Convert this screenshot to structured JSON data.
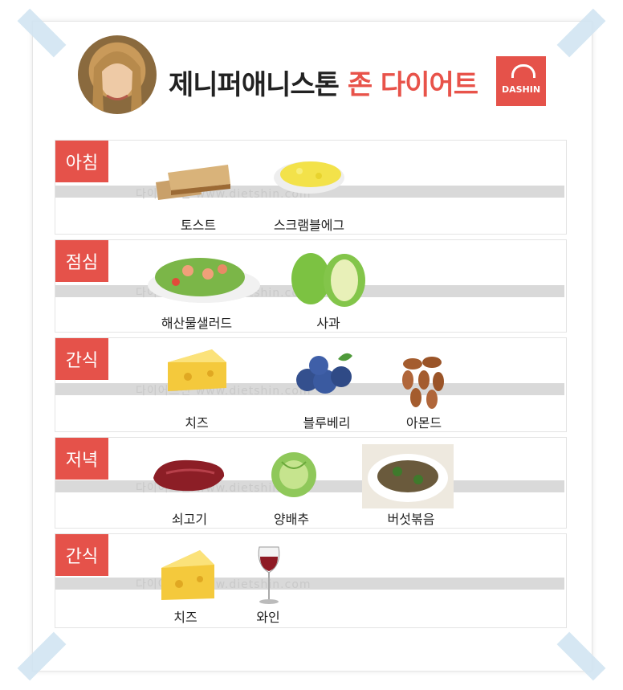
{
  "title": {
    "name": "제니퍼애니스톤",
    "accent": "존 다이어트"
  },
  "logo": {
    "text": "DASHIN"
  },
  "watermark": "다이어트신 www.dietshin.com",
  "sections": [
    {
      "label": "아침",
      "items": [
        "토스트",
        "스크램블에그"
      ]
    },
    {
      "label": "점심",
      "items": [
        "해산물샐러드",
        "사과"
      ]
    },
    {
      "label": "간식",
      "items": [
        "치즈",
        "블루베리",
        "아몬드"
      ]
    },
    {
      "label": "저녁",
      "items": [
        "쇠고기",
        "양배추",
        "버섯볶음"
      ]
    },
    {
      "label": "간식",
      "items": [
        "치즈",
        "와인"
      ]
    }
  ],
  "colors": {
    "accent": "#e5524a",
    "band": "#d9d9d9"
  }
}
